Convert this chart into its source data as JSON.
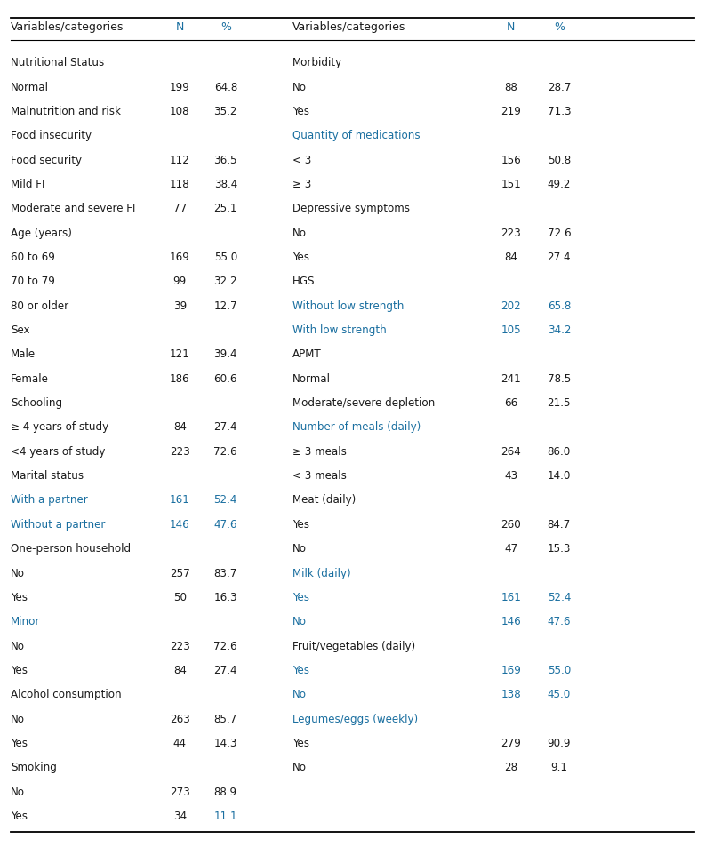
{
  "left_rows": [
    {
      "label": "Nutritional Status",
      "N": "",
      "pct": "",
      "type": "header"
    },
    {
      "label": "Normal",
      "N": "199",
      "pct": "64.8",
      "type": "sub"
    },
    {
      "label": "Malnutrition and risk",
      "N": "108",
      "pct": "35.2",
      "type": "sub"
    },
    {
      "label": "Food insecurity",
      "N": "",
      "pct": "",
      "type": "header"
    },
    {
      "label": "Food security",
      "N": "112",
      "pct": "36.5",
      "type": "sub"
    },
    {
      "label": "Mild FI",
      "N": "118",
      "pct": "38.4",
      "type": "sub"
    },
    {
      "label": "Moderate and severe FI",
      "N": "77",
      "pct": "25.1",
      "type": "sub"
    },
    {
      "label": "Age (years)",
      "N": "",
      "pct": "",
      "type": "header"
    },
    {
      "label": "60 to 69",
      "N": "169",
      "pct": "55.0",
      "type": "sub"
    },
    {
      "label": "70 to 79",
      "N": "99",
      "pct": "32.2",
      "type": "sub"
    },
    {
      "label": "80 or older",
      "N": "39",
      "pct": "12.7",
      "type": "sub"
    },
    {
      "label": "Sex",
      "N": "",
      "pct": "",
      "type": "header"
    },
    {
      "label": "Male",
      "N": "121",
      "pct": "39.4",
      "type": "sub"
    },
    {
      "label": "Female",
      "N": "186",
      "pct": "60.6",
      "type": "sub"
    },
    {
      "label": "Schooling",
      "N": "",
      "pct": "",
      "type": "header"
    },
    {
      "label": "≥ 4 years of study",
      "N": "84",
      "pct": "27.4",
      "type": "sub"
    },
    {
      "label": "<4 years of study",
      "N": "223",
      "pct": "72.6",
      "type": "sub"
    },
    {
      "label": "Marital status",
      "N": "",
      "pct": "",
      "type": "header"
    },
    {
      "label": "With a partner",
      "N": "161",
      "pct": "52.4",
      "type": "blue"
    },
    {
      "label": "Without a partner",
      "N": "146",
      "pct": "47.6",
      "type": "blue"
    },
    {
      "label": "One-person household",
      "N": "",
      "pct": "",
      "type": "header"
    },
    {
      "label": "No",
      "N": "257",
      "pct": "83.7",
      "type": "sub"
    },
    {
      "label": "Yes",
      "N": "50",
      "pct": "16.3",
      "type": "sub"
    },
    {
      "label": "Minor",
      "N": "",
      "pct": "",
      "type": "blue_header"
    },
    {
      "label": "No",
      "N": "223",
      "pct": "72.6",
      "type": "sub"
    },
    {
      "label": "Yes",
      "N": "84",
      "pct": "27.4",
      "type": "sub"
    },
    {
      "label": "Alcohol consumption",
      "N": "",
      "pct": "",
      "type": "header"
    },
    {
      "label": "No",
      "N": "263",
      "pct": "85.7",
      "type": "sub"
    },
    {
      "label": "Yes",
      "N": "44",
      "pct": "14.3",
      "type": "sub"
    },
    {
      "label": "Smoking",
      "N": "",
      "pct": "",
      "type": "header"
    },
    {
      "label": "No",
      "N": "273",
      "pct": "88.9",
      "type": "sub"
    },
    {
      "label": "Yes",
      "N": "34",
      "pct": "11.1",
      "type": "sub_pct_blue"
    }
  ],
  "right_rows": [
    {
      "label": "Morbidity",
      "N": "",
      "pct": "",
      "type": "header"
    },
    {
      "label": "No",
      "N": "88",
      "pct": "28.7",
      "type": "sub"
    },
    {
      "label": "Yes",
      "N": "219",
      "pct": "71.3",
      "type": "sub"
    },
    {
      "label": "Quantity of medications",
      "N": "",
      "pct": "",
      "type": "blue_header"
    },
    {
      "label": "< 3",
      "N": "156",
      "pct": "50.8",
      "type": "sub"
    },
    {
      "label": "≥ 3",
      "N": "151",
      "pct": "49.2",
      "type": "sub"
    },
    {
      "label": "Depressive symptoms",
      "N": "",
      "pct": "",
      "type": "header"
    },
    {
      "label": "No",
      "N": "223",
      "pct": "72.6",
      "type": "sub"
    },
    {
      "label": "Yes",
      "N": "84",
      "pct": "27.4",
      "type": "sub"
    },
    {
      "label": "HGS",
      "N": "",
      "pct": "",
      "type": "header"
    },
    {
      "label": "Without low strength",
      "N": "202",
      "pct": "65.8",
      "type": "blue"
    },
    {
      "label": "With low strength",
      "N": "105",
      "pct": "34.2",
      "type": "blue"
    },
    {
      "label": "APMT",
      "N": "",
      "pct": "",
      "type": "header"
    },
    {
      "label": "Normal",
      "N": "241",
      "pct": "78.5",
      "type": "sub"
    },
    {
      "label": "Moderate/severe depletion",
      "N": "66",
      "pct": "21.5",
      "type": "sub"
    },
    {
      "label": "Number of meals (daily)",
      "N": "",
      "pct": "",
      "type": "blue_header"
    },
    {
      "label": "≥ 3 meals",
      "N": "264",
      "pct": "86.0",
      "type": "sub"
    },
    {
      "label": "< 3 meals",
      "N": "43",
      "pct": "14.0",
      "type": "sub"
    },
    {
      "label": "Meat (daily)",
      "N": "",
      "pct": "",
      "type": "header"
    },
    {
      "label": "Yes",
      "N": "260",
      "pct": "84.7",
      "type": "sub"
    },
    {
      "label": "No",
      "N": "47",
      "pct": "15.3",
      "type": "sub"
    },
    {
      "label": "Milk (daily)",
      "N": "",
      "pct": "",
      "type": "blue_header"
    },
    {
      "label": "Yes",
      "N": "161",
      "pct": "52.4",
      "type": "blue"
    },
    {
      "label": "No",
      "N": "146",
      "pct": "47.6",
      "type": "blue"
    },
    {
      "label": "Fruit/vegetables (daily)",
      "N": "",
      "pct": "",
      "type": "header"
    },
    {
      "label": "Yes",
      "N": "169",
      "pct": "55.0",
      "type": "blue"
    },
    {
      "label": "No",
      "N": "138",
      "pct": "45.0",
      "type": "blue"
    },
    {
      "label": "Legumes/eggs (weekly)",
      "N": "",
      "pct": "",
      "type": "blue_header"
    },
    {
      "label": "Yes",
      "N": "279",
      "pct": "90.9",
      "type": "sub"
    },
    {
      "label": "No",
      "N": "28",
      "pct": "9.1",
      "type": "sub"
    },
    {
      "label": "",
      "N": "",
      "pct": "",
      "type": "empty"
    },
    {
      "label": "",
      "N": "",
      "pct": "",
      "type": "empty"
    }
  ],
  "dark_color": "#1a1a1a",
  "blue_color": "#1a6fa0",
  "header_N_color": "#1a6fa0",
  "bg_color": "#ffffff",
  "fig_width": 7.93,
  "fig_height": 9.54,
  "dpi": 100
}
